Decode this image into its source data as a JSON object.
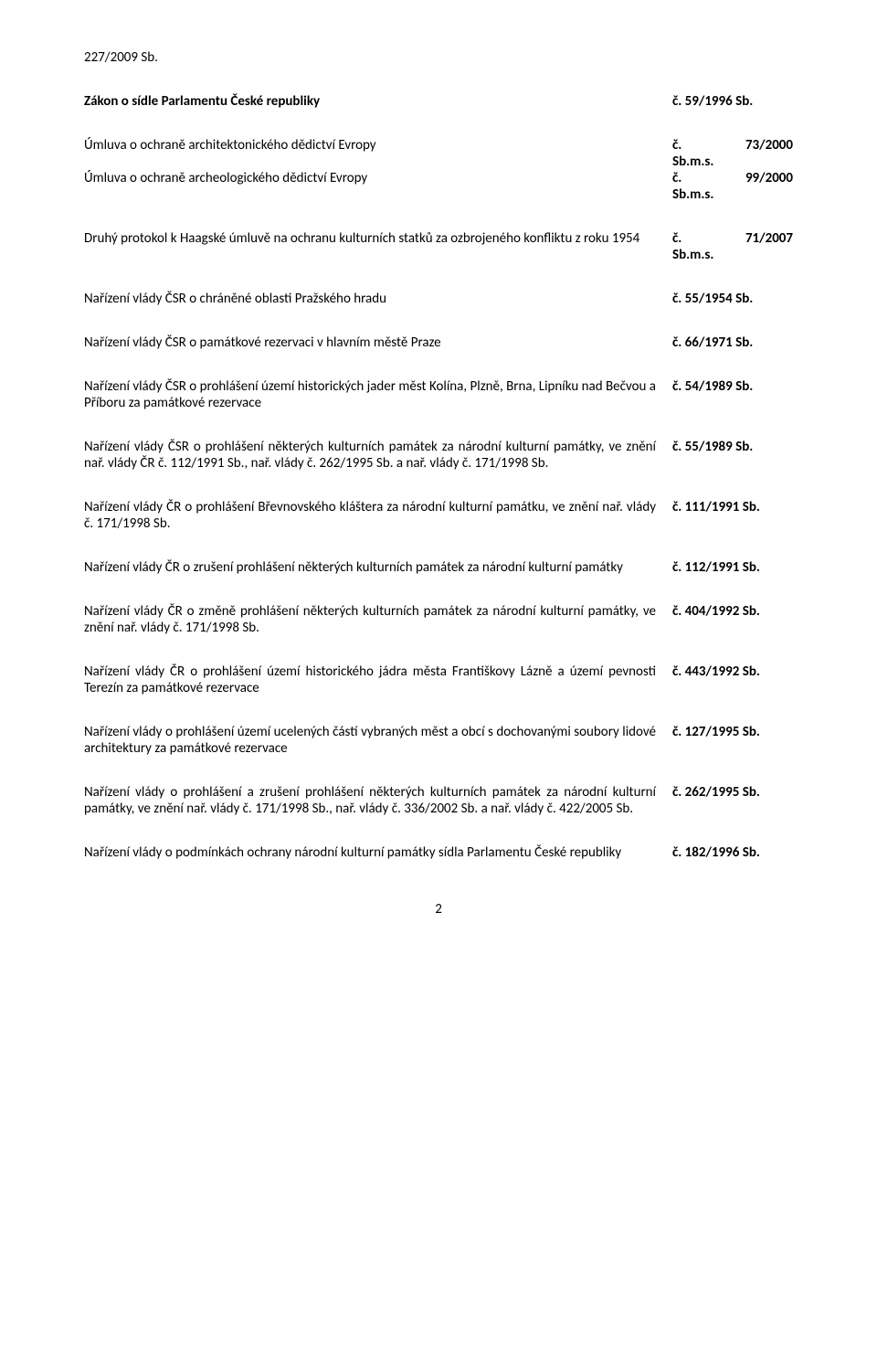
{
  "topRef": "227/2009 Sb.",
  "rows": [
    {
      "left": "Zákon o sídle Parlamentu České republiky",
      "right": "č. 59/1996 Sb.",
      "bold": true,
      "type": "single"
    },
    {
      "left": "Úmluva o ochraně architektonického dědictví Evropy",
      "r1": "č. Sb.m.s.",
      "r2": "73/2000",
      "type": "split"
    },
    {
      "left": "Úmluva o ochraně archeologického dědictví Evropy",
      "r1": "č. Sb.m.s.",
      "r2": "99/2000",
      "type": "split"
    },
    {
      "left": "Druhý protokol k Haagské úmluvě na ochranu kulturních statků za ozbrojeného konfliktu z roku 1954",
      "r1": "č. Sb.m.s.",
      "r2": "71/2007",
      "type": "split"
    },
    {
      "left": "Nařízení vlády ČSR o chráněné oblasti Pražského hradu",
      "right": "č. 55/1954 Sb.",
      "type": "single"
    },
    {
      "left": "Nařízení vlády ČSR o památkové rezervaci v hlavním městě Praze",
      "right": "č. 66/1971 Sb.",
      "type": "single"
    },
    {
      "left": "Nařízení vlády ČSR o prohlášení území historických jader měst Kolína, Plzně, Brna, Lipníku nad Bečvou a Příboru za památkové rezervace",
      "right": "č. 54/1989 Sb.",
      "type": "single"
    },
    {
      "left": "Nařízení vlády ČSR o prohlášení některých kulturních památek za národní kulturní památky, ve znění nař. vlády ČR č. 112/1991 Sb., nař. vlády č. 262/1995 Sb. a nař. vlády č. 171/1998 Sb.",
      "right": "č. 55/1989 Sb.",
      "type": "single"
    },
    {
      "left": "Nařízení vlády ČR o prohlášení Břevnovského kláštera za národní kulturní památku, ve znění nař. vlády č. 171/1998 Sb.",
      "right": "č. 111/1991 Sb.",
      "type": "single"
    },
    {
      "left": "Nařízení vlády ČR o zrušení prohlášení některých kulturních památek za národní kulturní památky",
      "right": "č. 112/1991 Sb.",
      "type": "single"
    },
    {
      "left": "Nařízení vlády ČR o změně prohlášení některých kulturních památek za národní kulturní památky, ve znění nař. vlády č. 171/1998 Sb.",
      "right": "č. 404/1992 Sb.",
      "type": "single"
    },
    {
      "left": "Nařízení vlády ČR o prohlášení území historického jádra města Františkovy Lázně a území pevnosti Terezín za památkové rezervace",
      "right": "č. 443/1992 Sb.",
      "type": "single"
    },
    {
      "left": "Nařízení vlády o prohlášení území ucelených částí vybraných měst a obcí s dochovanými soubory lidové architektury za památkové rezervace",
      "right": "č. 127/1995 Sb.",
      "type": "single"
    },
    {
      "left": "Nařízení vlády o prohlášení a zrušení prohlášení některých kulturních památek za národní kulturní památky, ve znění nař. vlády č. 171/1998 Sb., nař. vlády č. 336/2002 Sb. a nař. vlády č. 422/2005 Sb.",
      "right": "č. 262/1995 Sb.",
      "type": "single"
    },
    {
      "left": "Nařízení vlády o podmínkách ochrany národní kulturní památky sídla Parlamentu České republiky",
      "right": "č. 182/1996 Sb.",
      "type": "single"
    }
  ],
  "pageNumber": "2"
}
